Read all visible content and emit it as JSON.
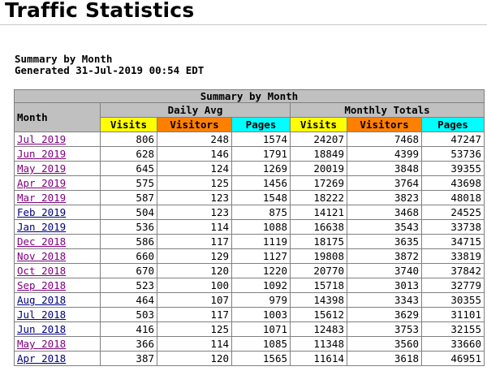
{
  "page": {
    "title": "Traffic Statistics",
    "summary_heading": "Summary by Month",
    "generated": "Generated 31-Jul-2019 00:54 EDT"
  },
  "table": {
    "caption": "Summary by Month",
    "month_header": "Month",
    "group_daily": "Daily Avg",
    "group_monthly": "Monthly Totals",
    "col_visits": "Visits",
    "col_visitors": "Visitors",
    "col_pages": "Pages",
    "colors": {
      "header_gray": "#c0c0c0",
      "visits": "#ffff00",
      "visitors": "#ff8000",
      "pages": "#00ffff",
      "link": "#000080",
      "visited_link": "#800080"
    },
    "rows": [
      {
        "month": "Jul 2019",
        "visited": true,
        "d_visits": "806",
        "d_visitors": "248",
        "d_pages": "1574",
        "m_visits": "24207",
        "m_visitors": "7468",
        "m_pages": "47247"
      },
      {
        "month": "Jun 2019",
        "visited": true,
        "d_visits": "628",
        "d_visitors": "146",
        "d_pages": "1791",
        "m_visits": "18849",
        "m_visitors": "4399",
        "m_pages": "53736"
      },
      {
        "month": "May 2019",
        "visited": true,
        "d_visits": "645",
        "d_visitors": "124",
        "d_pages": "1269",
        "m_visits": "20019",
        "m_visitors": "3848",
        "m_pages": "39355"
      },
      {
        "month": "Apr 2019",
        "visited": true,
        "d_visits": "575",
        "d_visitors": "125",
        "d_pages": "1456",
        "m_visits": "17269",
        "m_visitors": "3764",
        "m_pages": "43698"
      },
      {
        "month": "Mar 2019",
        "visited": true,
        "d_visits": "587",
        "d_visitors": "123",
        "d_pages": "1548",
        "m_visits": "18222",
        "m_visitors": "3823",
        "m_pages": "48018"
      },
      {
        "month": "Feb 2019",
        "visited": false,
        "d_visits": "504",
        "d_visitors": "123",
        "d_pages": "875",
        "m_visits": "14121",
        "m_visitors": "3468",
        "m_pages": "24525"
      },
      {
        "month": "Jan 2019",
        "visited": false,
        "d_visits": "536",
        "d_visitors": "114",
        "d_pages": "1088",
        "m_visits": "16638",
        "m_visitors": "3543",
        "m_pages": "33738"
      },
      {
        "month": "Dec 2018",
        "visited": true,
        "d_visits": "586",
        "d_visitors": "117",
        "d_pages": "1119",
        "m_visits": "18175",
        "m_visitors": "3635",
        "m_pages": "34715"
      },
      {
        "month": "Nov 2018",
        "visited": true,
        "d_visits": "660",
        "d_visitors": "129",
        "d_pages": "1127",
        "m_visits": "19808",
        "m_visitors": "3872",
        "m_pages": "33819"
      },
      {
        "month": "Oct 2018",
        "visited": true,
        "d_visits": "670",
        "d_visitors": "120",
        "d_pages": "1220",
        "m_visits": "20770",
        "m_visitors": "3740",
        "m_pages": "37842"
      },
      {
        "month": "Sep 2018",
        "visited": true,
        "d_visits": "523",
        "d_visitors": "100",
        "d_pages": "1092",
        "m_visits": "15718",
        "m_visitors": "3013",
        "m_pages": "32779"
      },
      {
        "month": "Aug 2018",
        "visited": false,
        "d_visits": "464",
        "d_visitors": "107",
        "d_pages": "979",
        "m_visits": "14398",
        "m_visitors": "3343",
        "m_pages": "30355"
      },
      {
        "month": "Jul 2018",
        "visited": false,
        "d_visits": "503",
        "d_visitors": "117",
        "d_pages": "1003",
        "m_visits": "15612",
        "m_visitors": "3629",
        "m_pages": "31101"
      },
      {
        "month": "Jun 2018",
        "visited": false,
        "d_visits": "416",
        "d_visitors": "125",
        "d_pages": "1071",
        "m_visits": "12483",
        "m_visitors": "3753",
        "m_pages": "32155"
      },
      {
        "month": "May 2018",
        "visited": true,
        "d_visits": "366",
        "d_visitors": "114",
        "d_pages": "1085",
        "m_visits": "11348",
        "m_visitors": "3560",
        "m_pages": "33660"
      },
      {
        "month": "Apr 2018",
        "visited": false,
        "d_visits": "387",
        "d_visitors": "120",
        "d_pages": "1565",
        "m_visits": "11614",
        "m_visitors": "3618",
        "m_pages": "46951"
      }
    ]
  }
}
